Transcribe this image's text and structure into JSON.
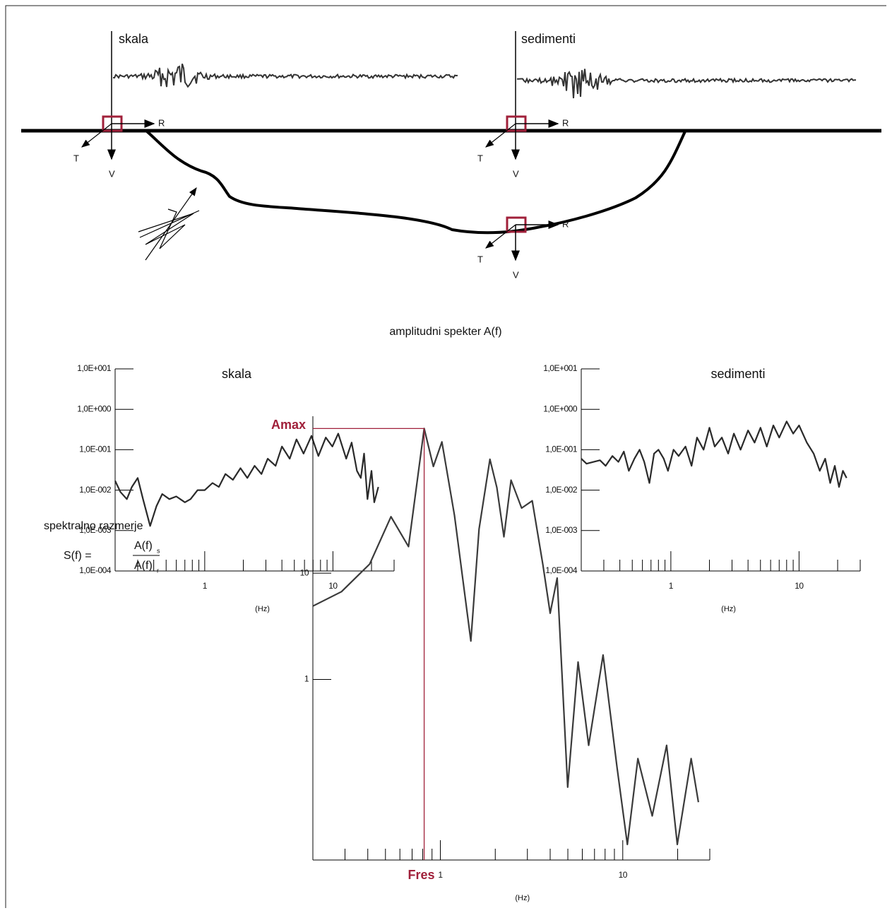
{
  "diagram": {
    "sites": [
      "skala",
      "sedimenti"
    ],
    "components": {
      "R": "R",
      "T": "T",
      "V": "V"
    },
    "spectra_title": "amplitudni spekter A(f)",
    "ratio_title": "spektralno razmerje",
    "formula": {
      "lhs": "S(f) =",
      "numerator": "A(f)",
      "numerator_sub": "s",
      "denominator": "A(f)",
      "denominator_sub": "r"
    }
  },
  "chart_data": [
    {
      "type": "line",
      "title": "skala",
      "xlabel": "(Hz)",
      "xscale": "log",
      "yscale": "log",
      "color": "#2a2a2a",
      "xlim": [
        0.2,
        30
      ],
      "ylim": [
        0.0001,
        10
      ],
      "xticks": [
        1,
        10
      ],
      "xminor": [
        0.2,
        0.3,
        0.4,
        0.5,
        0.6,
        0.7,
        0.8,
        0.9,
        2,
        3,
        4,
        5,
        6,
        7,
        8,
        9,
        20,
        30
      ],
      "yticks": [
        {
          "value": 10,
          "label": "1,0E+001"
        },
        {
          "value": 1,
          "label": "1,0E+000"
        },
        {
          "value": 0.1,
          "label": "1,0E-001"
        },
        {
          "value": 0.01,
          "label": "1,0E-002"
        },
        {
          "value": 0.001,
          "label": "1,0E-003"
        },
        {
          "value": 0.0001,
          "label": "1,0E-004"
        }
      ],
      "x": [
        0.2,
        0.22,
        0.247,
        0.27,
        0.3,
        0.33,
        0.375,
        0.42,
        0.466,
        0.53,
        0.6,
        0.7,
        0.775,
        0.88,
        1,
        1.15,
        1.29,
        1.45,
        1.66,
        1.9,
        2.15,
        2.45,
        2.77,
        3.1,
        3.57,
        4,
        4.6,
        5.2,
        5.9,
        6.8,
        7.7,
        8.8,
        9.9,
        11,
        12.7,
        14,
        15.4,
        16.5,
        17.5,
        18.6,
        20,
        21,
        22.6
      ],
      "values": [
        0.017,
        0.009,
        0.006,
        0.012,
        0.02,
        0.006,
        0.0013,
        0.004,
        0.008,
        0.006,
        0.007,
        0.005,
        0.006,
        0.01,
        0.01,
        0.015,
        0.012,
        0.025,
        0.018,
        0.035,
        0.02,
        0.04,
        0.025,
        0.06,
        0.04,
        0.12,
        0.06,
        0.18,
        0.08,
        0.22,
        0.07,
        0.2,
        0.12,
        0.25,
        0.06,
        0.15,
        0.03,
        0.02,
        0.08,
        0.006,
        0.03,
        0.005,
        0.012
      ]
    },
    {
      "type": "line",
      "title": "sedimenti",
      "xlabel": "(Hz)",
      "xscale": "log",
      "yscale": "log",
      "color": "#2a2a2a",
      "xlim": [
        0.2,
        30
      ],
      "ylim": [
        0.0001,
        10
      ],
      "xticks": [
        1,
        10
      ],
      "xminor": [
        0.2,
        0.3,
        0.4,
        0.5,
        0.6,
        0.7,
        0.8,
        0.9,
        2,
        3,
        4,
        5,
        6,
        7,
        8,
        9,
        20,
        30
      ],
      "yticks": [
        {
          "value": 10,
          "label": "1,0E+001"
        },
        {
          "value": 1,
          "label": "1,0E+000"
        },
        {
          "value": 0.1,
          "label": "1,0E-001"
        },
        {
          "value": 0.01,
          "label": "1,0E-002"
        },
        {
          "value": 0.001,
          "label": "1,0E-003"
        },
        {
          "value": 0.0001,
          "label": "1,0E-004"
        }
      ],
      "x": [
        0.2,
        0.22,
        0.25,
        0.28,
        0.31,
        0.35,
        0.39,
        0.43,
        0.47,
        0.52,
        0.57,
        0.62,
        0.68,
        0.74,
        0.8,
        0.88,
        0.95,
        1.05,
        1.15,
        1.3,
        1.45,
        1.6,
        1.8,
        2,
        2.2,
        2.5,
        2.8,
        3.1,
        3.5,
        4,
        4.5,
        5,
        5.6,
        6.3,
        7,
        8,
        9,
        10,
        11.5,
        13,
        14.5,
        16,
        17.5,
        19,
        20.5,
        22,
        23.5
      ],
      "values": [
        0.06,
        0.045,
        0.05,
        0.055,
        0.04,
        0.07,
        0.05,
        0.09,
        0.03,
        0.06,
        0.1,
        0.05,
        0.015,
        0.08,
        0.1,
        0.06,
        0.03,
        0.1,
        0.07,
        0.12,
        0.04,
        0.2,
        0.1,
        0.35,
        0.12,
        0.2,
        0.08,
        0.25,
        0.1,
        0.3,
        0.15,
        0.35,
        0.12,
        0.4,
        0.2,
        0.5,
        0.25,
        0.4,
        0.15,
        0.08,
        0.03,
        0.06,
        0.015,
        0.04,
        0.012,
        0.03,
        0.02
      ]
    },
    {
      "type": "line",
      "xlabel": "(Hz)",
      "xscale": "log",
      "yscale": "log",
      "color": "#3a3a3a",
      "xlim": [
        0.2,
        30
      ],
      "ylim": [
        0.02,
        300
      ],
      "xticks": [
        1,
        10
      ],
      "yticks": [
        10,
        1
      ],
      "xminor": [
        0.2,
        0.3,
        0.4,
        0.5,
        0.6,
        0.7,
        0.8,
        0.9,
        2,
        3,
        4,
        5,
        6,
        7,
        8,
        9,
        20,
        30
      ],
      "x": [
        0.2,
        0.287,
        0.41,
        0.536,
        0.669,
        0.815,
        0.915,
        1.02,
        1.195,
        1.47,
        1.63,
        1.87,
        2.04,
        2.23,
        2.44,
        2.79,
        3.19,
        3.65,
        4,
        4.37,
        4.99,
        5.69,
        6.5,
        7.8,
        9.3,
        10.6,
        12.1,
        14.5,
        17.4,
        19.9,
        23.7,
        26
      ],
      "values": [
        4.9,
        6.7,
        12.2,
        34,
        17.8,
        230,
        101,
        172,
        35,
        2.3,
        26,
        118,
        64,
        22,
        75,
        41,
        48,
        12,
        4.2,
        9,
        0.097,
        1.46,
        0.24,
        1.7,
        0.15,
        0.028,
        0.18,
        0.052,
        0.24,
        0.028,
        0.18,
        0.07
      ],
      "peak": {
        "x": 0.815,
        "y": 230,
        "x_label": "Fres",
        "y_label": "Amax",
        "color": "#a0203a"
      }
    }
  ]
}
